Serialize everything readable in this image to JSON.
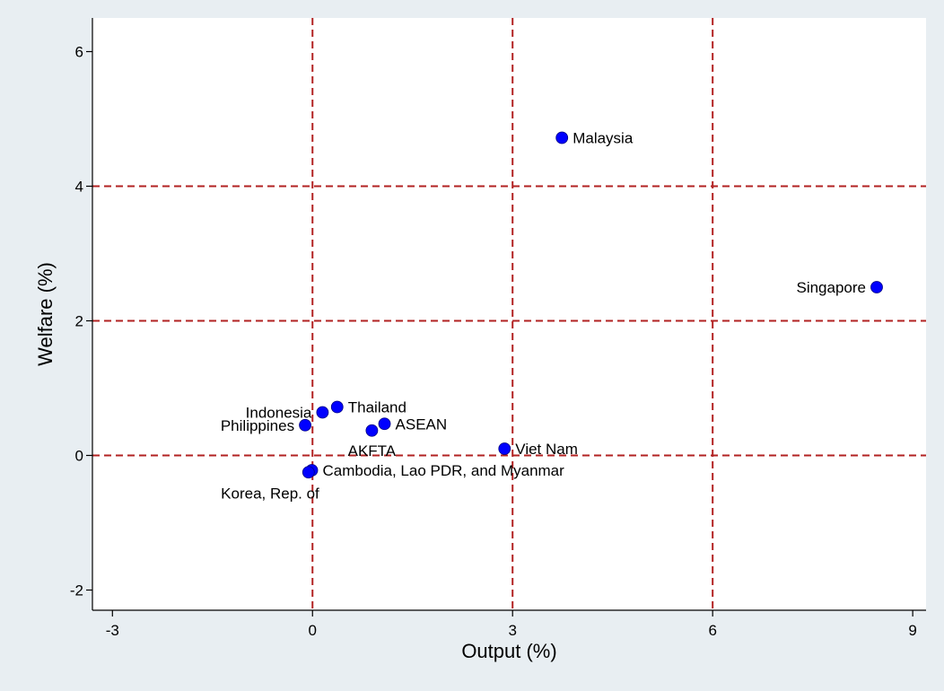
{
  "colors": {
    "background": "#e8eef2",
    "plot_background": "#ffffff",
    "marker": "#0000ff",
    "marker_outline": "#000080",
    "gridline": "#b22222",
    "axis": "#000000"
  },
  "chart_data": {
    "type": "scatter",
    "title": "",
    "xlabel": "Output (%)",
    "ylabel": "Welfare (%)",
    "xlim": [
      -3.3,
      9.2
    ],
    "ylim": [
      -2.3,
      6.5
    ],
    "xticks": [
      -3,
      0,
      3,
      6,
      9
    ],
    "yticks": [
      -2,
      0,
      2,
      4,
      6
    ],
    "x_gridlines": [
      0,
      3,
      6
    ],
    "y_gridlines": [
      0,
      2,
      4
    ],
    "grid_style": "dashed",
    "legend": "none",
    "points": [
      {
        "label": "Malaysia",
        "x": 3.74,
        "y": 4.72,
        "label_pos": "right"
      },
      {
        "label": "Singapore",
        "x": 8.46,
        "y": 2.5,
        "label_pos": "left"
      },
      {
        "label": "Thailand",
        "x": 0.37,
        "y": 0.72,
        "label_pos": "right"
      },
      {
        "label": "Indonesia",
        "x": 0.15,
        "y": 0.64,
        "label_pos": "left"
      },
      {
        "label": "Philippines",
        "x": -0.11,
        "y": 0.45,
        "label_pos": "left"
      },
      {
        "label": "ASEAN",
        "x": 1.08,
        "y": 0.47,
        "label_pos": "right"
      },
      {
        "label": "AKFTA",
        "x": 0.89,
        "y": 0.37,
        "label_pos": "below"
      },
      {
        "label": "Viet Nam",
        "x": 2.88,
        "y": 0.1,
        "label_pos": "right"
      },
      {
        "label": "Cambodia, Lao PDR, and Myanmar",
        "x": -0.01,
        "y": -0.22,
        "label_pos": "right"
      },
      {
        "label": "Korea, Rep. of",
        "x": -0.06,
        "y": -0.25,
        "label_pos": "below-left"
      }
    ]
  }
}
